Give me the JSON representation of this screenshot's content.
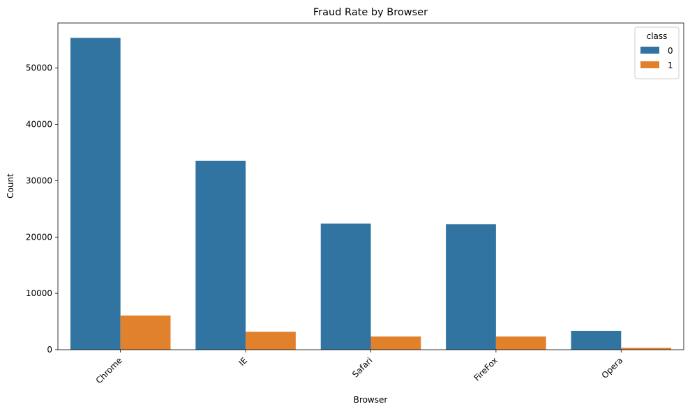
{
  "chart_data": {
    "type": "bar",
    "title": "Fraud Rate by Browser",
    "xlabel": "Browser",
    "ylabel": "Count",
    "categories": [
      "Chrome",
      "IE",
      "Safari",
      "FireFox",
      "Opera"
    ],
    "series": [
      {
        "name": "0",
        "color": "#3274a1",
        "values": [
          55363,
          33540,
          22397,
          22268,
          3348
        ]
      },
      {
        "name": "1",
        "color": "#e1812c",
        "values": [
          6069,
          3187,
          2342,
          2342,
          328
        ]
      }
    ],
    "ylim": [
      0,
      58000
    ],
    "yticks": [
      0,
      10000,
      20000,
      30000,
      40000,
      50000
    ],
    "ytick_labels": [
      "0",
      "10000",
      "20000",
      "30000",
      "40000",
      "50000"
    ],
    "legend": {
      "title": "class",
      "position": "top-right"
    },
    "grid": false
  }
}
